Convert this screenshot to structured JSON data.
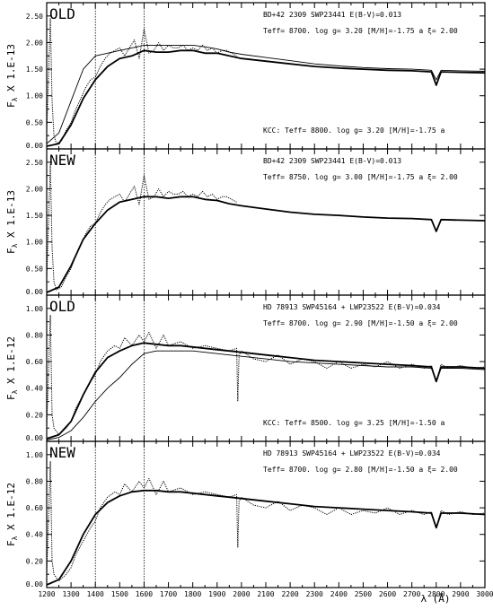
{
  "x_axis": {
    "min": 1200,
    "max": 3000,
    "ticks": [
      1200,
      1300,
      1400,
      1500,
      1600,
      1700,
      1800,
      1900,
      2000,
      2100,
      2200,
      2300,
      2400,
      2500,
      2600,
      2700,
      2800,
      2900,
      3000
    ],
    "label": "λ (Å)",
    "markers": [
      1400,
      1600
    ]
  },
  "chart_data": [
    {
      "type": "line",
      "tag": "OLD",
      "ylabel": "F",
      "ylabel_sub": "λ",
      "ylabel_rest": "X   1.E-13",
      "ylim": [
        0,
        2.75
      ],
      "yticks": [
        0.0,
        0.5,
        1.0,
        1.5,
        2.0,
        2.5
      ],
      "ytick_labels": [
        "0.00",
        "0.50",
        "1.00",
        "1.50",
        "2.00",
        "2.50"
      ],
      "info_line1": "BD+42 2309  SWP23441        E(B-V)=0.013",
      "info_line2": "Teff=  8700.  log g= 3.20 [M/H]=-1.75 a  ξ= 2.00",
      "note": "KCC: Teff=  8800. log g= 3.20 [M/H]=-1.75 a",
      "observed_range": [
        1200,
        1980
      ],
      "series": [
        {
          "role": "observed",
          "style": "dotted",
          "x": [
            1200,
            1215,
            1222,
            1230,
            1240,
            1260,
            1280,
            1300,
            1320,
            1340,
            1360,
            1380,
            1400,
            1420,
            1440,
            1460,
            1480,
            1500,
            1520,
            1540,
            1560,
            1580,
            1600,
            1620,
            1640,
            1660,
            1680,
            1700,
            1720,
            1740,
            1760,
            1780,
            1800,
            1820,
            1840,
            1860,
            1880,
            1900,
            1920,
            1940,
            1960,
            1980
          ],
          "y": [
            0.3,
            2.45,
            0.9,
            0.25,
            0.1,
            0.15,
            0.35,
            0.5,
            0.75,
            0.95,
            1.15,
            1.3,
            1.35,
            1.55,
            1.7,
            1.8,
            1.85,
            1.9,
            1.75,
            1.9,
            2.05,
            1.7,
            2.25,
            1.8,
            1.85,
            2.0,
            1.85,
            1.95,
            1.9,
            1.9,
            1.95,
            1.85,
            1.9,
            1.85,
            1.95,
            1.85,
            1.9,
            1.8,
            1.85,
            1.85,
            1.8,
            1.75
          ]
        },
        {
          "role": "model",
          "style": "solid-thick",
          "x": [
            1200,
            1250,
            1300,
            1350,
            1400,
            1450,
            1500,
            1550,
            1600,
            1650,
            1700,
            1750,
            1800,
            1850,
            1900,
            1950,
            2000,
            2100,
            2200,
            2300,
            2400,
            2500,
            2600,
            2700,
            2780,
            2800,
            2820,
            2900,
            3000
          ],
          "y": [
            0.05,
            0.1,
            0.45,
            0.95,
            1.3,
            1.55,
            1.7,
            1.75,
            1.85,
            1.82,
            1.82,
            1.85,
            1.85,
            1.8,
            1.8,
            1.75,
            1.7,
            1.65,
            1.6,
            1.55,
            1.52,
            1.5,
            1.48,
            1.47,
            1.45,
            1.2,
            1.45,
            1.44,
            1.43
          ]
        },
        {
          "role": "kcc",
          "style": "solid-thin",
          "x": [
            1200,
            1250,
            1300,
            1350,
            1400,
            1450,
            1500,
            1550,
            1600,
            1650,
            1700,
            1750,
            1800,
            1850,
            1900,
            1950,
            2000,
            2100,
            2200,
            2300,
            2400,
            2500,
            2600,
            2700,
            2780,
            2800,
            2820,
            2900,
            3000
          ],
          "y": [
            0.1,
            0.3,
            0.9,
            1.5,
            1.75,
            1.8,
            1.85,
            1.9,
            1.95,
            1.95,
            1.95,
            1.95,
            1.95,
            1.92,
            1.88,
            1.82,
            1.78,
            1.72,
            1.66,
            1.6,
            1.56,
            1.53,
            1.51,
            1.5,
            1.48,
            1.3,
            1.48,
            1.47,
            1.46
          ]
        }
      ]
    },
    {
      "type": "line",
      "tag": "NEW",
      "ylabel": "F",
      "ylabel_sub": "λ",
      "ylabel_rest": "X   1.E-13",
      "ylim": [
        0,
        2.75
      ],
      "yticks": [
        0.0,
        0.5,
        1.0,
        1.5,
        2.0,
        2.5
      ],
      "ytick_labels": [
        "0.00",
        "0.50",
        "1.00",
        "1.50",
        "2.00",
        "2.50"
      ],
      "info_line1": "BD+42 2309  SWP23441        E(B-V)=0.013",
      "info_line2": "Teff=  8750.  log g= 3.00 [M/H]=-1.75 a  ξ= 2.00",
      "note": "",
      "observed_range": [
        1200,
        1980
      ],
      "series": [
        {
          "role": "observed",
          "style": "dotted",
          "x": [
            1200,
            1215,
            1222,
            1230,
            1240,
            1260,
            1280,
            1300,
            1320,
            1340,
            1360,
            1380,
            1400,
            1420,
            1440,
            1460,
            1480,
            1500,
            1520,
            1540,
            1560,
            1580,
            1600,
            1620,
            1640,
            1660,
            1680,
            1700,
            1720,
            1740,
            1760,
            1780,
            1800,
            1820,
            1840,
            1860,
            1880,
            1900,
            1920,
            1940,
            1960,
            1980
          ],
          "y": [
            0.3,
            2.45,
            0.9,
            0.25,
            0.1,
            0.15,
            0.35,
            0.5,
            0.75,
            0.95,
            1.15,
            1.3,
            1.35,
            1.55,
            1.7,
            1.8,
            1.85,
            1.9,
            1.75,
            1.9,
            2.05,
            1.7,
            2.25,
            1.8,
            1.85,
            2.0,
            1.85,
            1.95,
            1.9,
            1.9,
            1.95,
            1.85,
            1.9,
            1.85,
            1.95,
            1.85,
            1.9,
            1.8,
            1.85,
            1.85,
            1.8,
            1.75
          ]
        },
        {
          "role": "model",
          "style": "solid-thick",
          "x": [
            1200,
            1250,
            1300,
            1350,
            1400,
            1450,
            1500,
            1550,
            1600,
            1650,
            1700,
            1750,
            1800,
            1850,
            1900,
            1950,
            2000,
            2100,
            2200,
            2300,
            2400,
            2500,
            2600,
            2700,
            2780,
            2800,
            2820,
            2900,
            3000
          ],
          "y": [
            0.05,
            0.15,
            0.55,
            1.05,
            1.35,
            1.6,
            1.75,
            1.8,
            1.85,
            1.85,
            1.82,
            1.85,
            1.85,
            1.8,
            1.78,
            1.72,
            1.68,
            1.62,
            1.56,
            1.52,
            1.5,
            1.47,
            1.45,
            1.44,
            1.42,
            1.2,
            1.42,
            1.41,
            1.4
          ]
        }
      ]
    },
    {
      "type": "line",
      "tag": "OLD",
      "ylabel": "F",
      "ylabel_sub": "λ",
      "ylabel_rest": "X   1.E-12",
      "ylim": [
        0,
        1.1
      ],
      "yticks": [
        0.0,
        0.2,
        0.4,
        0.6,
        0.8,
        1.0
      ],
      "ytick_labels": [
        "0.00",
        "0.20",
        "0.40",
        "0.60",
        "0.80",
        "1.00"
      ],
      "info_line1": "HD 78913 SWP45164 + LWP23522  E(B-V)=0.034",
      "info_line2": "Teff=  8700.  log g= 2.90 [M/H]=-1.50 a  ξ= 2.00",
      "note": "KCC: Teff=  8500. log g= 3.25 [M/H]=-1.50 a",
      "observed_range": [
        1200,
        3000
      ],
      "series": [
        {
          "role": "observed",
          "style": "dotted",
          "x": [
            1200,
            1215,
            1222,
            1230,
            1250,
            1280,
            1300,
            1320,
            1350,
            1380,
            1400,
            1420,
            1450,
            1480,
            1500,
            1520,
            1550,
            1580,
            1600,
            1620,
            1650,
            1680,
            1700,
            1750,
            1800,
            1850,
            1900,
            1950,
            1980,
            1985,
            1990,
            2000,
            2050,
            2100,
            2150,
            2200,
            2250,
            2300,
            2350,
            2400,
            2450,
            2500,
            2550,
            2600,
            2650,
            2700,
            2750,
            2780,
            2800,
            2820,
            2850,
            2900,
            2950,
            3000
          ],
          "y": [
            0.1,
            0.95,
            0.2,
            0.1,
            0.05,
            0.1,
            0.15,
            0.25,
            0.35,
            0.45,
            0.5,
            0.6,
            0.68,
            0.72,
            0.7,
            0.78,
            0.72,
            0.8,
            0.75,
            0.82,
            0.7,
            0.8,
            0.72,
            0.75,
            0.7,
            0.72,
            0.7,
            0.68,
            0.7,
            0.3,
            0.65,
            0.68,
            0.62,
            0.6,
            0.65,
            0.58,
            0.62,
            0.6,
            0.55,
            0.6,
            0.55,
            0.58,
            0.56,
            0.6,
            0.55,
            0.58,
            0.55,
            0.57,
            0.45,
            0.58,
            0.55,
            0.57,
            0.55,
            0.56
          ]
        },
        {
          "role": "model",
          "style": "solid-thick",
          "x": [
            1200,
            1250,
            1300,
            1350,
            1400,
            1450,
            1500,
            1550,
            1600,
            1650,
            1700,
            1750,
            1800,
            1850,
            1900,
            1950,
            2000,
            2100,
            2200,
            2300,
            2400,
            2500,
            2600,
            2700,
            2780,
            2800,
            2820,
            2900,
            3000
          ],
          "y": [
            0.02,
            0.05,
            0.15,
            0.35,
            0.52,
            0.63,
            0.68,
            0.72,
            0.74,
            0.73,
            0.72,
            0.72,
            0.71,
            0.7,
            0.69,
            0.68,
            0.67,
            0.65,
            0.63,
            0.61,
            0.6,
            0.59,
            0.58,
            0.57,
            0.56,
            0.45,
            0.56,
            0.56,
            0.55
          ]
        },
        {
          "role": "kcc",
          "style": "solid-thin",
          "x": [
            1200,
            1250,
            1300,
            1350,
            1400,
            1450,
            1500,
            1550,
            1600,
            1650,
            1700,
            1750,
            1800,
            1850,
            1900,
            1950,
            2000,
            2100,
            2200,
            2300,
            2400,
            2500,
            2600,
            2700,
            2780,
            2800,
            2820,
            2900,
            3000
          ],
          "y": [
            0.01,
            0.03,
            0.08,
            0.18,
            0.3,
            0.4,
            0.48,
            0.58,
            0.66,
            0.68,
            0.68,
            0.68,
            0.68,
            0.67,
            0.66,
            0.65,
            0.64,
            0.62,
            0.6,
            0.59,
            0.58,
            0.57,
            0.56,
            0.56,
            0.55,
            0.46,
            0.55,
            0.55,
            0.54
          ]
        }
      ]
    },
    {
      "type": "line",
      "tag": "NEW",
      "ylabel": "F",
      "ylabel_sub": "λ",
      "ylabel_rest": "X   1.E-12",
      "ylim": [
        0,
        1.1
      ],
      "yticks": [
        0.0,
        0.2,
        0.4,
        0.6,
        0.8,
        1.0
      ],
      "ytick_labels": [
        "0.00",
        "0.20",
        "0.40",
        "0.60",
        "0.80",
        "1.00"
      ],
      "info_line1": "HD 78913 SWP45164 + LWP23522  E(B-V)=0.034",
      "info_line2": "Teff=  8700.  log g= 2.80 [M/H]=-1.50 a  ξ= 2.00",
      "note": "",
      "observed_range": [
        1200,
        3000
      ],
      "series": [
        {
          "role": "observed",
          "style": "dotted",
          "x": [
            1200,
            1215,
            1222,
            1230,
            1250,
            1280,
            1300,
            1320,
            1350,
            1380,
            1400,
            1420,
            1450,
            1480,
            1500,
            1520,
            1550,
            1580,
            1600,
            1620,
            1650,
            1680,
            1700,
            1750,
            1800,
            1850,
            1900,
            1950,
            1980,
            1985,
            1990,
            2000,
            2050,
            2100,
            2150,
            2200,
            2250,
            2300,
            2350,
            2400,
            2450,
            2500,
            2550,
            2600,
            2650,
            2700,
            2750,
            2780,
            2800,
            2820,
            2850,
            2900,
            2950,
            3000
          ],
          "y": [
            0.1,
            0.95,
            0.2,
            0.1,
            0.05,
            0.1,
            0.15,
            0.25,
            0.35,
            0.45,
            0.5,
            0.6,
            0.68,
            0.72,
            0.7,
            0.78,
            0.72,
            0.8,
            0.75,
            0.82,
            0.7,
            0.8,
            0.72,
            0.75,
            0.7,
            0.72,
            0.7,
            0.68,
            0.7,
            0.3,
            0.65,
            0.68,
            0.62,
            0.6,
            0.65,
            0.58,
            0.62,
            0.6,
            0.55,
            0.6,
            0.55,
            0.58,
            0.56,
            0.6,
            0.55,
            0.58,
            0.55,
            0.57,
            0.45,
            0.58,
            0.55,
            0.57,
            0.55,
            0.56
          ]
        },
        {
          "role": "model",
          "style": "solid-thick",
          "x": [
            1200,
            1250,
            1300,
            1350,
            1400,
            1450,
            1500,
            1550,
            1600,
            1650,
            1700,
            1750,
            1800,
            1850,
            1900,
            1950,
            2000,
            2100,
            2200,
            2300,
            2400,
            2500,
            2600,
            2700,
            2780,
            2800,
            2820,
            2900,
            3000
          ],
          "y": [
            0.02,
            0.06,
            0.2,
            0.4,
            0.55,
            0.64,
            0.69,
            0.72,
            0.73,
            0.73,
            0.72,
            0.72,
            0.71,
            0.7,
            0.69,
            0.68,
            0.67,
            0.65,
            0.63,
            0.61,
            0.6,
            0.59,
            0.58,
            0.57,
            0.56,
            0.45,
            0.56,
            0.56,
            0.55
          ]
        }
      ]
    }
  ]
}
